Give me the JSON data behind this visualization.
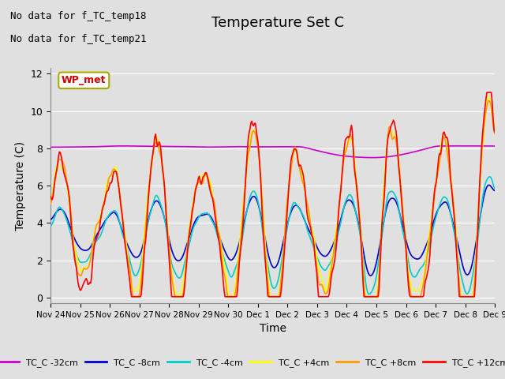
{
  "title": "Temperature Set C",
  "xlabel": "Time",
  "ylabel": "Temperature (C)",
  "yticks": [
    0,
    2,
    4,
    6,
    8,
    10,
    12
  ],
  "note1": "No data for f_TC_temp18",
  "note2": "No data for f_TC_temp21",
  "wp_met_label": "WP_met",
  "legend_entries": [
    "TC_C -32cm",
    "TC_C -8cm",
    "TC_C -4cm",
    "TC_C +4cm",
    "TC_C +8cm",
    "TC_C +12cm"
  ],
  "line_colors": [
    "#cc00cc",
    "#0000cc",
    "#00cccc",
    "#ffff00",
    "#ff9900",
    "#ff0000"
  ],
  "bg_color": "#e0e0e0",
  "plot_bg_color": "#e0e0e0",
  "grid_color": "#ffffff",
  "xtick_labels": [
    "Nov 24",
    "Nov 25",
    "Nov 26",
    "Nov 27",
    "Nov 28",
    "Nov 29",
    "Nov 30",
    "Dec 1",
    "Dec 2",
    "Dec 3",
    "Dec 4",
    "Dec 5",
    "Dec 6",
    "Dec 7",
    "Dec 8",
    "Dec 9"
  ],
  "num_points": 500
}
